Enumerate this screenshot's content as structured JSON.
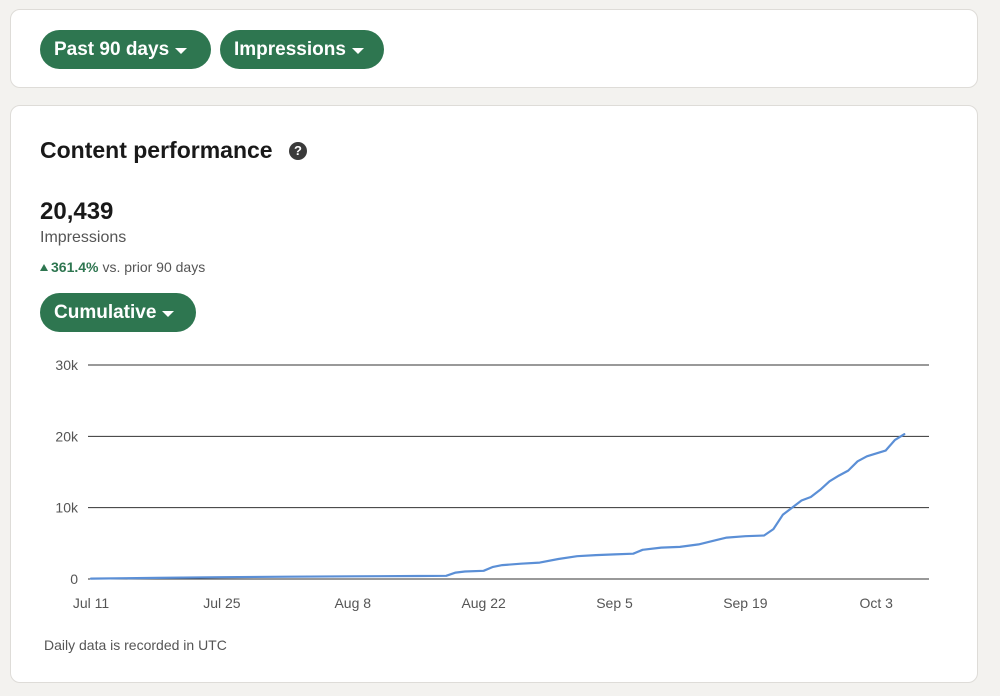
{
  "filters": {
    "range_label": "Past 90 days",
    "metric_label": "Impressions"
  },
  "panel": {
    "title": "Content performance",
    "help_icon": "question-circle-icon",
    "total_value": "20,439",
    "total_label": "Impressions",
    "change_icon": "triangle-up-icon",
    "change_percent": "361.4%",
    "change_text": "vs. prior 90 days",
    "mode_label": "Cumulative",
    "footnote": "Daily data is recorded in UTC"
  },
  "colors": {
    "accent": "#2e7650",
    "line": "#5b8fd6",
    "gridline": "#333333"
  },
  "chart_data": {
    "type": "line",
    "title": "",
    "xlabel": "",
    "ylabel": "",
    "x_tick_labels": [
      "Jul 11",
      "Jul 25",
      "Aug 8",
      "Aug 22",
      "Sep 5",
      "Sep 19",
      "Oct 3"
    ],
    "y_tick_labels": [
      "0",
      "10k",
      "20k",
      "30k"
    ],
    "y_ticks": [
      0,
      10000,
      20000,
      30000
    ],
    "ylim": [
      0,
      30000
    ],
    "xlim": [
      "2023-07-11",
      "2023-10-08"
    ],
    "grid": true,
    "legend": "none",
    "series": [
      {
        "x": [
          "2023-07-11",
          "2023-07-18",
          "2023-07-25",
          "2023-08-01",
          "2023-08-08",
          "2023-08-15",
          "2023-08-18",
          "2023-08-19",
          "2023-08-20",
          "2023-08-22",
          "2023-08-23",
          "2023-08-24",
          "2023-08-26",
          "2023-08-28",
          "2023-08-30",
          "2023-09-01",
          "2023-09-03",
          "2023-09-05",
          "2023-09-07",
          "2023-09-08",
          "2023-09-10",
          "2023-09-12",
          "2023-09-14",
          "2023-09-16",
          "2023-09-17",
          "2023-09-19",
          "2023-09-21",
          "2023-09-22",
          "2023-09-23",
          "2023-09-25",
          "2023-09-26",
          "2023-09-27",
          "2023-09-28",
          "2023-09-29",
          "2023-09-30",
          "2023-10-01",
          "2023-10-02",
          "2023-10-04",
          "2023-10-05",
          "2023-10-06"
        ],
        "values": [
          50,
          150,
          250,
          320,
          380,
          420,
          450,
          900,
          1050,
          1150,
          1700,
          1950,
          2150,
          2300,
          2800,
          3200,
          3350,
          3450,
          3550,
          4100,
          4400,
          4500,
          4850,
          5500,
          5800,
          6000,
          6100,
          7000,
          9000,
          11000,
          11500,
          12500,
          13700,
          14500,
          15200,
          16500,
          17200,
          18000,
          19500,
          20300
        ]
      }
    ]
  }
}
